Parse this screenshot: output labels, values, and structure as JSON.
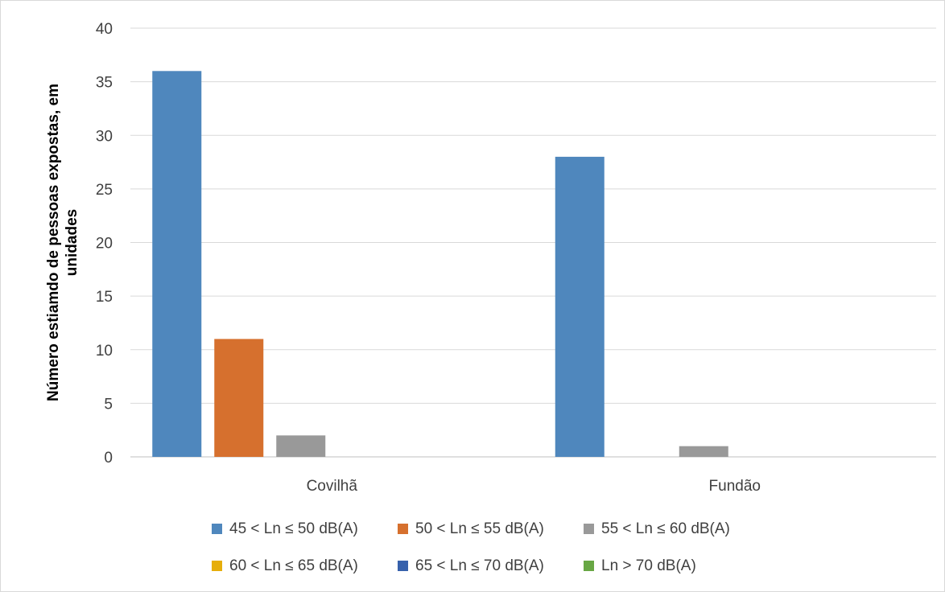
{
  "chart_data": {
    "type": "bar",
    "title": "",
    "xlabel": "",
    "ylabel": "Número estiamdo de pessoas expostas, em unidades",
    "ylim": [
      0,
      40
    ],
    "yticks": [
      0,
      5,
      10,
      15,
      20,
      25,
      30,
      35,
      40
    ],
    "grid": true,
    "legend_position": "bottom",
    "categories": [
      "Covilhã",
      "Fundão"
    ],
    "series": [
      {
        "name": "45 < Ln ≤ 50 dB(A)",
        "color": "#4F87BD",
        "values": [
          36,
          28
        ]
      },
      {
        "name": "50 < Ln ≤ 55 dB(A)",
        "color": "#D6702E",
        "values": [
          11,
          0
        ]
      },
      {
        "name": "55 < Ln ≤ 60 dB(A)",
        "color": "#999999",
        "values": [
          2,
          1
        ]
      },
      {
        "name": "60 < Ln ≤ 65 dB(A)",
        "color": "#E6AE0A",
        "values": [
          0,
          0
        ]
      },
      {
        "name": "65 < Ln ≤ 70 dB(A)",
        "color": "#3761AC",
        "values": [
          0,
          0
        ]
      },
      {
        "name": "Ln > 70 dB(A)",
        "color": "#68A744",
        "values": [
          0,
          0
        ]
      }
    ]
  }
}
